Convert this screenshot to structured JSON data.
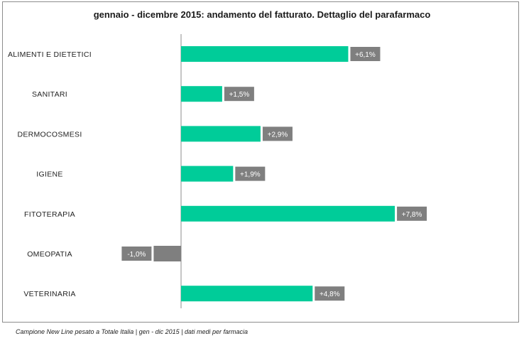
{
  "chart_data": {
    "type": "bar",
    "orientation": "horizontal",
    "title": "gennaio - dicembre 2015: andamento del fatturato. Dettaglio del parafarmaco",
    "categories": [
      "ALIMENTI E DIETETICI",
      "SANITARI",
      "DERMOCOSMESI",
      "IGIENE",
      "FITOTERAPIA",
      "OMEOPATIA",
      "VETERINARIA"
    ],
    "values": [
      6.1,
      1.5,
      2.9,
      1.9,
      7.8,
      -1.0,
      4.8
    ],
    "data_labels": [
      "+6,1%",
      "+1,5%",
      "+2,9%",
      "+1,9%",
      "+7,8%",
      "-1,0%",
      "+4,8%"
    ],
    "xlim": [
      -2.3,
      10
    ],
    "grid": false,
    "legend": "none",
    "colors": {
      "positive": "#00cc99",
      "negative": "#7f7f7f",
      "label_bg": "#7f7f7f",
      "axis": "#8c8c8c"
    }
  },
  "footer": {
    "source": "Campione New Line pesato a Totale Italia | gen - dic 2015 | dati medi per farmacia"
  }
}
